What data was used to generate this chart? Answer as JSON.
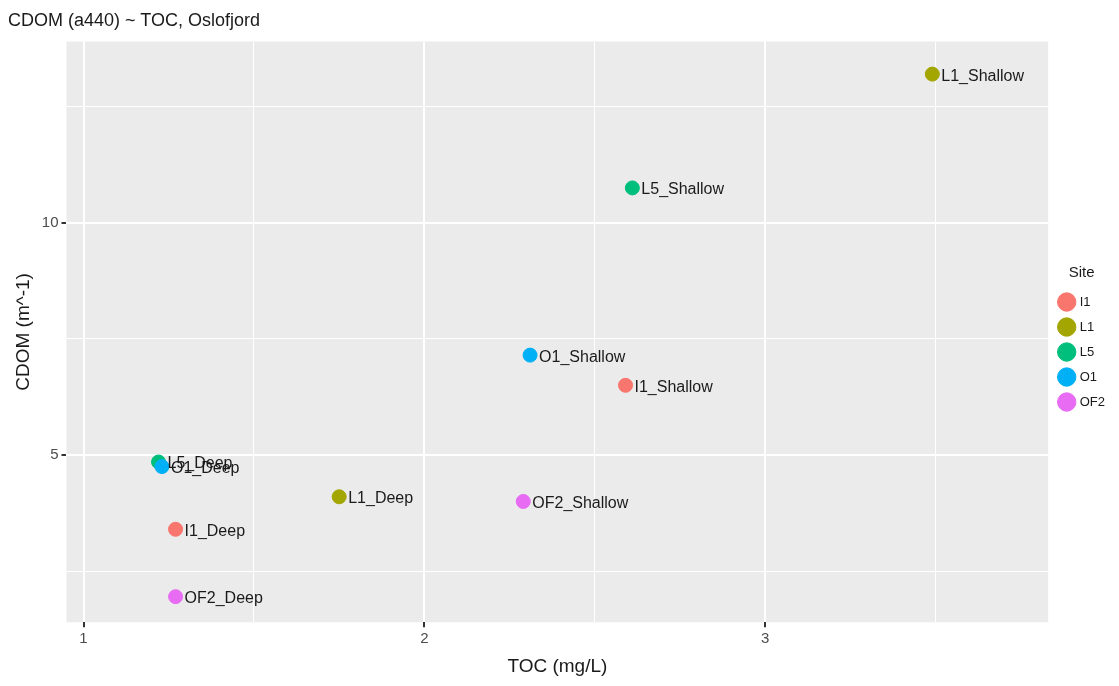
{
  "chart_data": {
    "type": "scatter",
    "title": "CDOM (a440) ~ TOC, Oslofjord",
    "xlabel": "TOC (mg/L)",
    "ylabel": "CDOM (m^-1)",
    "legend_title": "Site",
    "series": [
      {
        "name": "I1",
        "color": "#f8766d",
        "x": [
          2.59,
          1.27
        ],
        "values": [
          6.5,
          3.4
        ]
      },
      {
        "name": "L1",
        "color": "#a3a500",
        "x": [
          3.49,
          1.75
        ],
        "values": [
          13.2,
          4.1
        ]
      },
      {
        "name": "L5",
        "color": "#00bf7d",
        "x": [
          2.61,
          1.22
        ],
        "values": [
          10.75,
          4.85
        ]
      },
      {
        "name": "O1",
        "color": "#00b0f6",
        "x": [
          2.31,
          1.23
        ],
        "values": [
          7.15,
          4.75
        ]
      },
      {
        "name": "OF2",
        "color": "#e76bf3",
        "x": [
          2.29,
          1.27
        ],
        "values": [
          4.0,
          1.95
        ]
      }
    ],
    "annotations": [
      {
        "text": "I1_Shallow",
        "x": 2.59,
        "y": 6.5
      },
      {
        "text": "I1_Deep",
        "x": 1.27,
        "y": 3.4
      },
      {
        "text": "L1_Shallow",
        "x": 3.49,
        "y": 13.2
      },
      {
        "text": "L1_Deep",
        "x": 1.75,
        "y": 4.1
      },
      {
        "text": "L5_Shallow",
        "x": 2.61,
        "y": 10.75
      },
      {
        "text": "L5_Deep",
        "x": 1.22,
        "y": 4.85
      },
      {
        "text": "O1_Shallow",
        "x": 2.31,
        "y": 7.15
      },
      {
        "text": "O1_Deep",
        "x": 1.23,
        "y": 4.75
      },
      {
        "text": "OF2_Shallow",
        "x": 2.29,
        "y": 4.0
      },
      {
        "text": "OF2_Deep",
        "x": 1.27,
        "y": 1.95
      }
    ],
    "xlim": [
      0.95,
      3.83
    ],
    "ylim": [
      1.4,
      13.9
    ],
    "xticks": [
      1,
      {
        "value": 1.5,
        "label": null
      },
      2,
      {
        "value": 2.5,
        "label": null
      },
      3,
      {
        "value": 3.5,
        "label": null
      }
    ],
    "yticks": [
      {
        "value": 2.5,
        "label": null
      },
      5,
      {
        "value": 7.5,
        "label": null
      },
      10,
      {
        "value": 12.5,
        "label": null
      }
    ],
    "grid": true,
    "legend": "right",
    "marker": "circle"
  }
}
